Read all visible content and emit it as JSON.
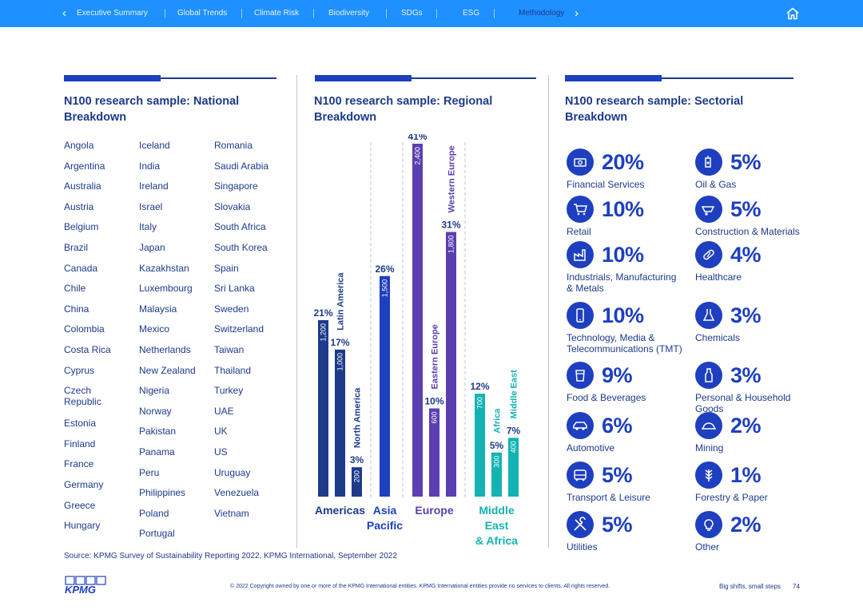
{
  "nav": {
    "tabs": [
      "Executive Summary",
      "Global Trends",
      "Climate Risk",
      "Biodiversity",
      "SDGs",
      "ESG",
      "Methodology"
    ],
    "active_tab": "Methodology",
    "home_icon": "home-icon"
  },
  "national": {
    "title": "N100 research sample: National Breakdown",
    "columns": [
      [
        "Angola",
        "Argentina",
        "Australia",
        "Austria",
        "Belgium",
        "Brazil",
        "Canada",
        "Chile",
        "China",
        "Colombia",
        "Costa Rica",
        "Cyprus",
        "Czech Republic",
        "Estonia",
        "Finland",
        "France",
        "Germany",
        "Greece",
        "Hungary"
      ],
      [
        "Iceland",
        "India",
        "Ireland",
        "Israel",
        "Italy",
        "Japan",
        "Kazakhstan",
        "Luxembourg",
        "Malaysia",
        "Mexico",
        "Netherlands",
        "New Zealand",
        "Nigeria",
        "Norway",
        "Pakistan",
        "Panama",
        "Peru",
        "Philippines",
        "Poland",
        "Portugal"
      ],
      [
        "Romania",
        "Saudi Arabia",
        "Singapore",
        "Slovakia",
        "South Africa",
        "South Korea",
        "Spain",
        "Sri Lanka",
        "Sweden",
        "Switzerland",
        "Taiwan",
        "Thailand",
        "Turkey",
        "UAE",
        "UK",
        "US",
        "Uruguay",
        "Venezuela",
        "Vietnam"
      ]
    ]
  },
  "regional": {
    "title": "N100 research sample: Regional Breakdown"
  },
  "chart_data": {
    "type": "bar",
    "title": "N100 research sample: Regional Breakdown",
    "unit": "companies",
    "groups": [
      {
        "name": "Americas",
        "color": "#1e3a8a",
        "bars": [
          {
            "name": "",
            "value": 1200,
            "label": "1,200",
            "pct": "21%"
          },
          {
            "name": "Latin America",
            "value": 1000,
            "label": "1,000",
            "pct": "17%"
          },
          {
            "name": "North America",
            "value": 200,
            "label": "200",
            "pct": "3%"
          }
        ]
      },
      {
        "name": "Asia Pacific",
        "color": "#1e3fbf",
        "bars": [
          {
            "name": "",
            "value": 1500,
            "label": "1,500",
            "pct": "26%"
          }
        ]
      },
      {
        "name": "Europe",
        "color": "#5b3fb0",
        "bars": [
          {
            "name": "",
            "value": 2400,
            "label": "2,400",
            "pct": "41%"
          },
          {
            "name": "Eastern Europe",
            "value": 600,
            "label": "600",
            "pct": "10%"
          },
          {
            "name": "Western Europe",
            "value": 1800,
            "label": "1,800",
            "pct": "31%"
          }
        ]
      },
      {
        "name": "Middle East & Africa",
        "color": "#14b3b3",
        "bars": [
          {
            "name": "",
            "value": 700,
            "label": "700",
            "pct": "12%"
          },
          {
            "name": "Africa",
            "value": 300,
            "label": "300",
            "pct": "5%"
          },
          {
            "name": "Middle East",
            "value": 400,
            "label": "400",
            "pct": "7%"
          }
        ]
      }
    ]
  },
  "sectorial": {
    "title": "N100 research sample: Sectorial Breakdown",
    "items": [
      {
        "pct": "20%",
        "label": "Financial Services",
        "icon": "money-icon"
      },
      {
        "pct": "5%",
        "label": "Oil & Gas",
        "icon": "oil-can-icon"
      },
      {
        "pct": "10%",
        "label": "Retail",
        "icon": "shopping-cart-icon"
      },
      {
        "pct": "5%",
        "label": "Construction & Materials",
        "icon": "wheelbarrow-icon"
      },
      {
        "pct": "10%",
        "label": "Industrials, Manufacturing & Metals",
        "icon": "factory-icon"
      },
      {
        "pct": "4%",
        "label": "Healthcare",
        "icon": "pill-icon"
      },
      {
        "pct": "10%",
        "label": "Technology, Media & Telecommunications (TMT)",
        "icon": "smartphone-icon"
      },
      {
        "pct": "3%",
        "label": "Chemicals",
        "icon": "flask-icon"
      },
      {
        "pct": "9%",
        "label": "Food & Beverages",
        "icon": "cup-icon"
      },
      {
        "pct": "3%",
        "label": "Personal & Household Goods",
        "icon": "bottle-icon"
      },
      {
        "pct": "6%",
        "label": "Automotive",
        "icon": "car-icon"
      },
      {
        "pct": "2%",
        "label": "Mining",
        "icon": "helmet-icon"
      },
      {
        "pct": "5%",
        "label": "Transport & Leisure",
        "icon": "bus-icon"
      },
      {
        "pct": "1%",
        "label": "Forestry & Paper",
        "icon": "wheat-icon"
      },
      {
        "pct": "5%",
        "label": "Utilities",
        "icon": "tools-icon"
      },
      {
        "pct": "2%",
        "label": "Other",
        "icon": "lightbulb-icon"
      }
    ]
  },
  "source": "Source: KPMG Survey of Sustainability Reporting 2022, KPMG International, September 2022",
  "footer": {
    "logo": "KPMG",
    "copyright": "© 2022 Copyright owned by one or more of the KPMG International entities. KPMG International entities provide no services to clients. All rights reserved.",
    "tagline": "Big shifts, small steps",
    "page": "74"
  },
  "colors": {
    "nav": "#1e90ff",
    "navy": "#1e3a8a",
    "blue": "#1e3fbf",
    "purple": "#5b3fb0",
    "teal": "#14b3b3"
  }
}
